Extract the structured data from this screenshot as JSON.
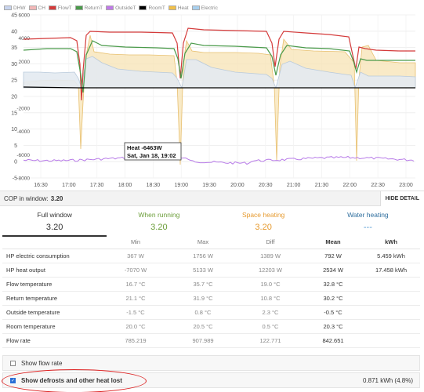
{
  "legend": [
    {
      "label": "DHW",
      "color": "#c8d4ee"
    },
    {
      "label": "CH",
      "color": "#f2b8b8"
    },
    {
      "label": "FlowT",
      "color": "#d43a3a"
    },
    {
      "label": "ReturnT",
      "color": "#4a9a4a"
    },
    {
      "label": "OutsideT",
      "color": "#c07ae8"
    },
    {
      "label": "RoomT",
      "color": "#000000"
    },
    {
      "label": "Heat",
      "color": "#f2c14a"
    },
    {
      "label": "Electric",
      "color": "#a8d0ee"
    }
  ],
  "tooltip": {
    "line1": "Heat -6463W",
    "line2": "Sat, Jan 18, 19:02"
  },
  "chart_data": {
    "type": "line",
    "x": [
      "16:30",
      "17:00",
      "17:30",
      "18:00",
      "18:30",
      "19:00",
      "19:30",
      "20:00",
      "20:30",
      "21:00",
      "21:30",
      "22:00",
      "22:30",
      "23:00"
    ],
    "y_left_ticks": [
      "45",
      "40",
      "35",
      "30",
      "25",
      "20",
      "15",
      "10",
      "5",
      "0",
      "-5"
    ],
    "y_right_ticks": [
      "6000",
      "4000",
      "2000",
      "0",
      "-2000",
      "-4000",
      "-6000",
      "-8000"
    ],
    "ylim_left": [
      -5,
      45
    ],
    "ylim_right": [
      -8000,
      6000
    ],
    "series": [
      {
        "name": "FlowT",
        "color": "#d43a3a"
      },
      {
        "name": "ReturnT",
        "color": "#4a9a4a"
      },
      {
        "name": "OutsideT",
        "color": "#c07ae8"
      },
      {
        "name": "RoomT",
        "color": "#000000"
      },
      {
        "name": "Heat",
        "color": "#f2c14a"
      },
      {
        "name": "Electric",
        "color": "#a8d0ee"
      }
    ]
  },
  "cop": {
    "label": "COP in window:",
    "value": "3.20",
    "hide_label": "HIDE DETAIL"
  },
  "tabs": [
    {
      "label": "Full window",
      "value": "3.20"
    },
    {
      "label": "When running",
      "value": "3.20"
    },
    {
      "label": "Space heating",
      "value": "3.20"
    },
    {
      "label": "Water heating",
      "value": "---"
    }
  ],
  "table": {
    "headers": [
      "",
      "Min",
      "Max",
      "Diff",
      "Mean",
      "kWh"
    ],
    "rows": [
      [
        "HP electric consumption",
        "367 W",
        "1756 W",
        "1389 W",
        "792 W",
        "5.459 kWh"
      ],
      [
        "HP heat output",
        "-7070 W",
        "5133 W",
        "12203 W",
        "2534 W",
        "17.458 kWh"
      ],
      [
        "Flow temperature",
        "16.7 °C",
        "35.7 °C",
        "19.0 °C",
        "32.8 °C",
        ""
      ],
      [
        "Return temperature",
        "21.1 °C",
        "31.9 °C",
        "10.8 °C",
        "30.2 °C",
        ""
      ],
      [
        "Outside temperature",
        "-1.5 °C",
        "0.8 °C",
        "2.3 °C",
        "-0.5 °C",
        ""
      ],
      [
        "Room temperature",
        "20.0 °C",
        "20.5 °C",
        "0.5 °C",
        "20.3 °C",
        ""
      ],
      [
        "Flow rate",
        "785.219",
        "907.989",
        "122.771",
        "842.651",
        ""
      ]
    ]
  },
  "options": {
    "flow_rate_label": "Show flow rate",
    "defrost_label": "Show defrosts and other heat lost",
    "defrost_value": "0.871 kWh (4.8%)"
  }
}
